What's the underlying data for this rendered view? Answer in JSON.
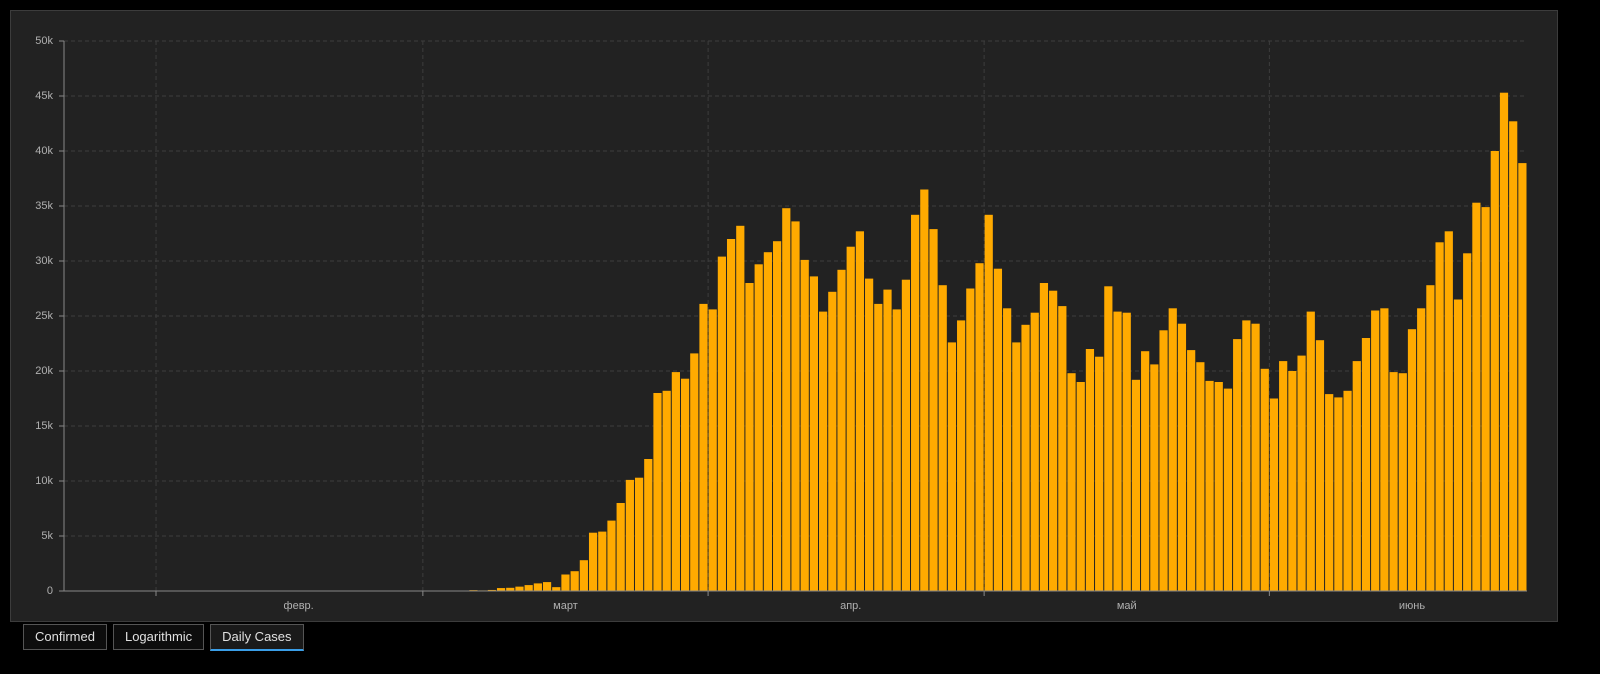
{
  "chart_data": {
    "type": "bar",
    "categories": [
      null,
      null,
      null,
      null,
      null,
      null,
      null,
      null,
      null,
      null,
      null,
      null,
      null,
      null,
      null,
      null,
      null,
      null,
      null,
      null,
      null,
      null,
      null,
      null,
      null,
      null,
      null,
      null,
      null,
      null,
      null,
      null,
      null,
      null,
      null,
      null,
      null,
      null,
      null,
      null,
      null,
      null,
      null,
      null,
      null,
      null,
      null,
      null,
      null,
      null,
      null,
      null,
      null,
      null,
      null,
      null,
      null,
      null,
      null,
      null,
      null,
      null,
      null,
      null,
      null,
      null,
      null,
      null,
      null,
      null,
      null,
      null,
      null,
      null,
      null,
      null,
      null,
      null,
      null,
      null,
      null,
      null,
      null,
      null,
      null,
      null,
      null,
      null,
      null,
      null,
      null,
      null,
      null,
      null,
      null,
      null,
      null,
      null,
      null,
      null,
      null,
      null,
      null,
      null,
      null,
      null,
      null,
      null,
      null,
      null,
      null,
      null,
      null,
      null,
      null,
      null,
      null,
      null,
      null,
      null,
      null,
      null,
      null,
      null,
      null,
      null,
      null,
      null,
      null,
      null,
      null,
      null,
      null,
      null,
      null,
      null,
      null,
      null,
      null,
      null,
      null,
      null,
      null,
      null,
      null,
      null,
      null,
      null,
      null,
      null,
      null,
      null,
      null,
      null,
      null,
      null,
      null,
      null,
      null
    ],
    "values": [
      1,
      0,
      0,
      1,
      0,
      3,
      0,
      0,
      0,
      1,
      0,
      1,
      0,
      3,
      0,
      0,
      1,
      0,
      0,
      0,
      0,
      1,
      0,
      0,
      1,
      0,
      0,
      0,
      0,
      0,
      0,
      0,
      0,
      0,
      2,
      0,
      0,
      4,
      5,
      8,
      7,
      23,
      19,
      33,
      77,
      52,
      95,
      266,
      290,
      397,
      537,
      692,
      810,
      350,
      1500,
      1800,
      2800,
      5300,
      5400,
      6400,
      8000,
      10100,
      10300,
      12000,
      18000,
      18200,
      19900,
      19300,
      21600,
      26100,
      25600,
      30400,
      32000,
      33200,
      28000,
      29700,
      30800,
      31800,
      34800,
      33600,
      30100,
      28600,
      25400,
      27200,
      29200,
      31300,
      32700,
      28400,
      26100,
      27400,
      25600,
      28300,
      34200,
      36500,
      32900,
      27800,
      22600,
      24600,
      27500,
      29800,
      34200,
      29300,
      25700,
      22600,
      24200,
      25300,
      28000,
      27300,
      25900,
      19800,
      19000,
      22000,
      21300,
      27700,
      25400,
      25300,
      19200,
      21800,
      20600,
      23700,
      25700,
      24300,
      21900,
      20800,
      19100,
      19000,
      18400,
      22900,
      24600,
      24300,
      20200,
      17500,
      20900,
      20000,
      21400,
      25400,
      22800,
      17900,
      17600,
      18200,
      20900,
      23000,
      25500,
      25700,
      19900,
      19800,
      23800,
      25700,
      27800,
      31700,
      32700,
      26500,
      30700,
      35300,
      34900,
      40000,
      45300,
      42700,
      38900
    ],
    "color": "#ffaa00",
    "ylim": [
      0,
      50000
    ],
    "yticks": [
      {
        "value": 0,
        "label": "0"
      },
      {
        "value": 5000,
        "label": "5k"
      },
      {
        "value": 10000,
        "label": "10k"
      },
      {
        "value": 15000,
        "label": "15k"
      },
      {
        "value": 20000,
        "label": "20k"
      },
      {
        "value": 25000,
        "label": "25k"
      },
      {
        "value": 30000,
        "label": "30k"
      },
      {
        "value": 35000,
        "label": "35k"
      },
      {
        "value": 40000,
        "label": "40k"
      },
      {
        "value": 45000,
        "label": "45k"
      },
      {
        "value": 50000,
        "label": "50k"
      }
    ],
    "xticks": [
      {
        "value": 10,
        "label": "февр."
      },
      {
        "value": 39,
        "label": "март"
      },
      {
        "value": 70,
        "label": "апр."
      },
      {
        "value": 100,
        "label": "май"
      },
      {
        "value": 131,
        "label": "июнь"
      }
    ],
    "grid": true
  },
  "tabs": [
    "Confirmed",
    "Logarithmic",
    "Daily Cases"
  ]
}
